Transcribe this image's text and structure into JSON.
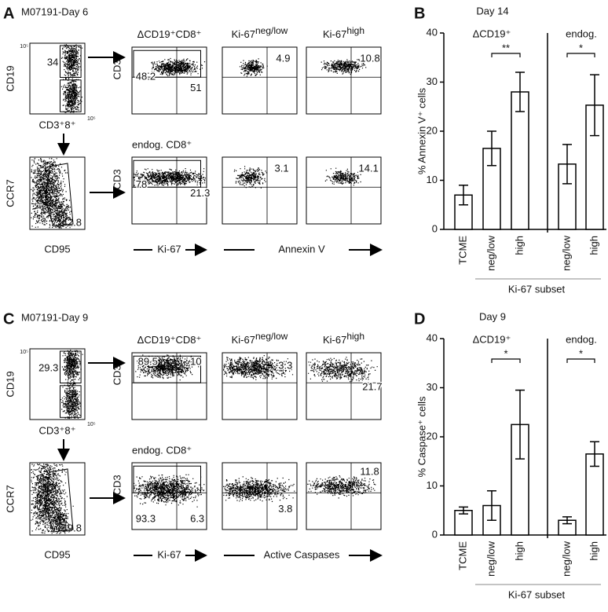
{
  "panels": [
    {
      "letter": "A",
      "title": "M07191-Day 6",
      "gate_plots": [
        {
          "y_label": "CD19",
          "x_label": "CD3⁺8⁺",
          "axis_max": "10⁵",
          "numbers": [
            "34"
          ]
        },
        {
          "y_label": "CCR7",
          "x_label": "CD95",
          "numbers": [
            "42.8"
          ]
        }
      ],
      "col_headers": [
        {
          "base": "ΔCD19⁺CD8⁺"
        },
        {
          "base": "Ki-67",
          "sup": "neg/low"
        },
        {
          "base": "Ki-67",
          "sup": "high"
        }
      ],
      "row2_header": "endog. CD8⁺",
      "y_label": "CD3",
      "plot_numbers": [
        [
          "48.2",
          "51"
        ],
        [
          "4.9"
        ],
        [
          "10.8"
        ],
        [
          "78",
          "21.3"
        ],
        [
          "3.1"
        ],
        [
          "14.1"
        ]
      ],
      "x_labels": [
        "Ki-67",
        "Annexin V"
      ]
    },
    {
      "letter": "C",
      "title": "M07191-Day 9",
      "gate_plots": [
        {
          "y_label": "CD19",
          "x_label": "CD3⁺8⁺",
          "axis_max": "10⁵",
          "numbers": [
            "29.3"
          ]
        },
        {
          "y_label": "CCR7",
          "x_label": "CD95",
          "numbers": [
            "49.8"
          ]
        }
      ],
      "col_headers": [
        {
          "base": "ΔCD19⁺CD8⁺"
        },
        {
          "base": "Ki-67",
          "sup": "neg/low"
        },
        {
          "base": "Ki-67",
          "sup": "high"
        }
      ],
      "row2_header": "endog. CD8⁺",
      "y_label": "CD3",
      "plot_numbers": [
        [
          "89.5",
          "10"
        ],
        [
          "3.3"
        ],
        [
          "21.7"
        ],
        [
          "93.3",
          "6.3"
        ],
        [
          "3.8"
        ],
        [
          "11.8"
        ]
      ],
      "x_labels": [
        "Ki-67",
        "Active Caspases"
      ]
    }
  ],
  "chart_data": [
    {
      "type": "bar",
      "letter": "B",
      "title": "Day 14",
      "group_labels": [
        "ΔCD19⁺",
        "endog."
      ],
      "categories": [
        "TCME",
        "neg/low",
        "high",
        "neg/low",
        "high"
      ],
      "values": [
        7,
        16.5,
        28,
        13.3,
        25.3
      ],
      "errors": [
        2,
        3.5,
        4,
        4,
        6.2
      ],
      "ylim": [
        0,
        40
      ],
      "yticks": [
        0,
        10,
        20,
        30,
        40
      ],
      "y_label": "% Annexin V⁺ cells",
      "x_label": "Ki-67 subset",
      "significance": [
        "**",
        "*"
      ],
      "color": "#ffffff"
    },
    {
      "type": "bar",
      "letter": "D",
      "title": "Day 9",
      "group_labels": [
        "ΔCD19⁺",
        "endog."
      ],
      "categories": [
        "TCME",
        "neg/low",
        "high",
        "neg/low",
        "high"
      ],
      "values": [
        5,
        6,
        22.5,
        3,
        16.5
      ],
      "errors": [
        0.7,
        3,
        7,
        0.7,
        2.5
      ],
      "ylim": [
        0,
        40
      ],
      "yticks": [
        0,
        10,
        20,
        30,
        40
      ],
      "y_label": "% Caspase⁺ cells",
      "x_label": "Ki-67 subset",
      "significance": [
        "*",
        "*"
      ],
      "color": "#ffffff"
    }
  ]
}
